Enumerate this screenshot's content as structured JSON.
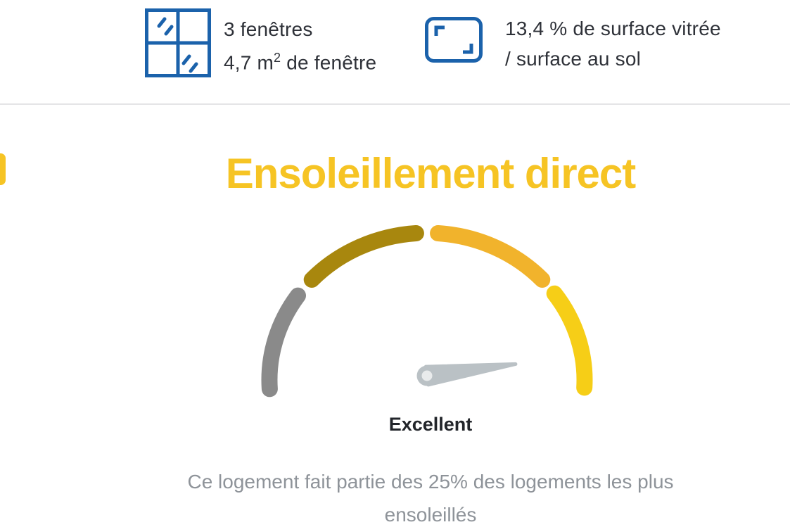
{
  "colors": {
    "icon_blue": "#1B62AB",
    "title_yellow": "#F6C424",
    "text_dark": "#2E3138",
    "text_gray": "#8E9399",
    "reading_dark": "#22252A",
    "divider_gray": "#E4E4E6"
  },
  "stats": {
    "windows": {
      "icon": "window-icon",
      "count_line": "3 fenêtres",
      "area_prefix": "4,7 m",
      "area_sup": "2",
      "area_suffix": " de fenêtre"
    },
    "glazing": {
      "icon": "surface-ratio-icon",
      "line1": "13,4 % de surface vitrée",
      "line2": "/ surface au sol"
    }
  },
  "chart_data": {
    "type": "gauge",
    "title": "Ensoleillement direct",
    "reading_label": "Excellent",
    "scale_span_deg": [
      183.5,
      -3
    ],
    "segments": [
      {
        "name": "poor",
        "color": "#8A8A8A",
        "start_deg": 183.5,
        "end_deg": 145
      },
      {
        "name": "fair",
        "color": "#A8870E",
        "start_deg": 137,
        "end_deg": 94
      },
      {
        "name": "good",
        "color": "#F1B32C",
        "start_deg": 86,
        "end_deg": 43
      },
      {
        "name": "excellent",
        "color": "#F6CE17",
        "start_deg": 36,
        "end_deg": -3
      }
    ],
    "needle_angle_deg": 7.5,
    "needle_color": "#BAC1C5",
    "needle_hub_color": "#E9EBEC",
    "legend_position": "none",
    "grid": false,
    "note_lines": [
      "Ce logement fait partie des 25% des logements les plus",
      "ensoleillés"
    ]
  }
}
